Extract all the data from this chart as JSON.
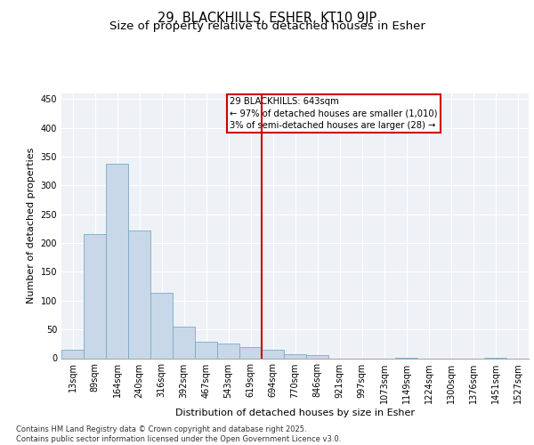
{
  "title_line1": "29, BLACKHILLS, ESHER, KT10 9JP",
  "title_line2": "Size of property relative to detached houses in Esher",
  "xlabel": "Distribution of detached houses by size in Esher",
  "ylabel": "Number of detached properties",
  "bin_labels": [
    "13sqm",
    "89sqm",
    "164sqm",
    "240sqm",
    "316sqm",
    "392sqm",
    "467sqm",
    "543sqm",
    "619sqm",
    "694sqm",
    "770sqm",
    "846sqm",
    "921sqm",
    "997sqm",
    "1073sqm",
    "1149sqm",
    "1224sqm",
    "1300sqm",
    "1376sqm",
    "1451sqm",
    "1527sqm"
  ],
  "bar_values": [
    15,
    216,
    338,
    222,
    113,
    55,
    29,
    26,
    19,
    15,
    7,
    6,
    0,
    0,
    0,
    1,
    0,
    0,
    0,
    1,
    0
  ],
  "bar_color": "#c8d8e8",
  "bar_edge_color": "#7aaac8",
  "vline_color": "#cc0000",
  "annotation_text": "29 BLACKHILLS: 643sqm\n← 97% of detached houses are smaller (1,010)\n3% of semi-detached houses are larger (28) →",
  "ylim": [
    0,
    460
  ],
  "yticks": [
    0,
    50,
    100,
    150,
    200,
    250,
    300,
    350,
    400,
    450
  ],
  "background_color": "#eef2f7",
  "grid_color": "#ffffff",
  "footer_text": "Contains HM Land Registry data © Crown copyright and database right 2025.\nContains public sector information licensed under the Open Government Licence v3.0.",
  "title_fontsize": 10.5,
  "subtitle_fontsize": 9.5,
  "label_fontsize": 8,
  "tick_fontsize": 7,
  "footer_fontsize": 6
}
